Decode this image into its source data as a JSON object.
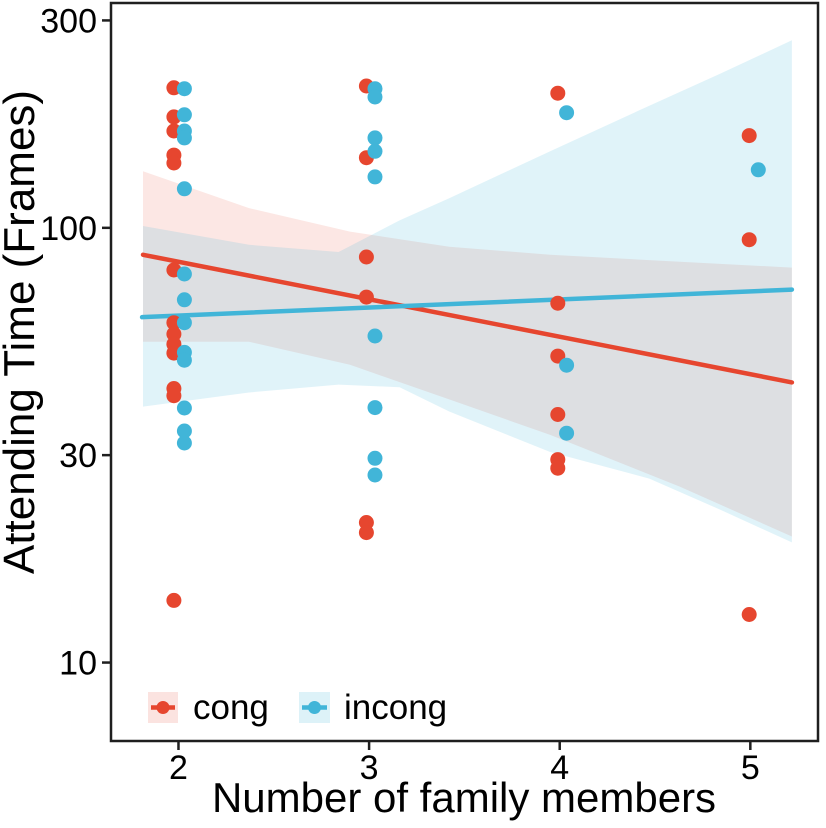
{
  "figure": {
    "background": "#FFFFFF",
    "panel_border_color": "#1f1f1f",
    "tick_color": "#1f1f1f",
    "text_color": "#000000"
  },
  "axes": {
    "x_title": "Number of family members",
    "y_title": "Attending Time (Frames)",
    "x_tick_labels": [
      "2",
      "3",
      "4",
      "5"
    ],
    "y_tick_labels": [
      "10",
      "30",
      "100",
      "300"
    ]
  },
  "legend": {
    "items": [
      {
        "label": "cong",
        "color": "#E6462F",
        "key_bg": "rgba(230,70,47,0.15)"
      },
      {
        "label": "incong",
        "color": "#41B5D8",
        "key_bg": "rgba(65,181,216,0.18)"
      }
    ]
  },
  "chart_data": {
    "type": "scatter",
    "title": "",
    "xlabel": "Number of family members",
    "ylabel": "Attending Time (Frames)",
    "x_range": [
      1.646,
      5.355
    ],
    "y_range": [
      6.6,
      329
    ],
    "y_scale": "log10",
    "x_ticks": [
      2,
      3,
      4,
      5
    ],
    "y_ticks": [
      10,
      30,
      100,
      300
    ],
    "grid": false,
    "legend_position": "inside-bottom-left",
    "series": [
      {
        "name": "cong",
        "color": "#E6462F",
        "band_fill": "rgba(230,70,47,0.13)",
        "points": [
          [
            1.976,
            210
          ],
          [
            1.976,
            180
          ],
          [
            1.976,
            167
          ],
          [
            1.976,
            147
          ],
          [
            1.976,
            141
          ],
          [
            1.976,
            80
          ],
          [
            1.976,
            60.5
          ],
          [
            1.976,
            57
          ],
          [
            1.976,
            54
          ],
          [
            1.976,
            51.5
          ],
          [
            1.976,
            42.7
          ],
          [
            1.976,
            41.1
          ],
          [
            1.976,
            13.9
          ],
          [
            2.986,
            212
          ],
          [
            2.986,
            145
          ],
          [
            2.986,
            85.7
          ],
          [
            2.986,
            69.3
          ],
          [
            2.986,
            21
          ],
          [
            2.986,
            19.9
          ],
          [
            3.99,
            204
          ],
          [
            3.99,
            67.1
          ],
          [
            3.99,
            50.7
          ],
          [
            3.99,
            37.2
          ],
          [
            3.99,
            29.3
          ],
          [
            3.99,
            28
          ],
          [
            4.994,
            163
          ],
          [
            4.994,
            93.9
          ],
          [
            4.994,
            12.9
          ]
        ],
        "trend": [
          [
            1.814,
            86.7
          ],
          [
            5.218,
            44.1
          ]
        ],
        "ci": [
          [
            1.814,
            135,
            54.7
          ],
          [
            2.37,
            111,
            54.7
          ],
          [
            2.9,
            98,
            48.4
          ],
          [
            3.42,
            90.5,
            40.3
          ],
          [
            3.95,
            86.7,
            33.4
          ],
          [
            4.63,
            83.6,
            25.4
          ],
          [
            5.218,
            81,
            19.5
          ]
        ]
      },
      {
        "name": "incong",
        "color": "#41B5D8",
        "band_fill": "rgba(65,181,216,0.16)",
        "points": [
          [
            2.031,
            209
          ],
          [
            2.031,
            182
          ],
          [
            2.031,
            167
          ],
          [
            2.031,
            161
          ],
          [
            2.031,
            123
          ],
          [
            2.031,
            78.3
          ],
          [
            2.031,
            68.3
          ],
          [
            2.031,
            60.5
          ],
          [
            2.031,
            51.7
          ],
          [
            2.031,
            49.6
          ],
          [
            2.031,
            38.5
          ],
          [
            2.031,
            34.1
          ],
          [
            2.031,
            32
          ],
          [
            3.031,
            209
          ],
          [
            3.031,
            200
          ],
          [
            3.031,
            161
          ],
          [
            3.031,
            150
          ],
          [
            3.031,
            131
          ],
          [
            3.031,
            56.4
          ],
          [
            3.031,
            38.6
          ],
          [
            3.031,
            29.5
          ],
          [
            3.031,
            27
          ],
          [
            4.036,
            184
          ],
          [
            4.036,
            48.3
          ],
          [
            4.036,
            33.7
          ],
          [
            5.042,
            136
          ]
        ],
        "trend": [
          [
            1.809,
            62.3
          ],
          [
            5.218,
            72.1
          ]
        ],
        "ci": [
          [
            1.814,
            101,
            38.8
          ],
          [
            2.37,
            91.4,
            41.8
          ],
          [
            2.84,
            88,
            43.6
          ],
          [
            3.16,
            104,
            43
          ],
          [
            3.42,
            117,
            37.8
          ],
          [
            3.95,
            150,
            30.5
          ],
          [
            4.47,
            191,
            26.5
          ],
          [
            4.84,
            226,
            22.5
          ],
          [
            5.218,
            270,
            18.9
          ]
        ]
      }
    ]
  }
}
